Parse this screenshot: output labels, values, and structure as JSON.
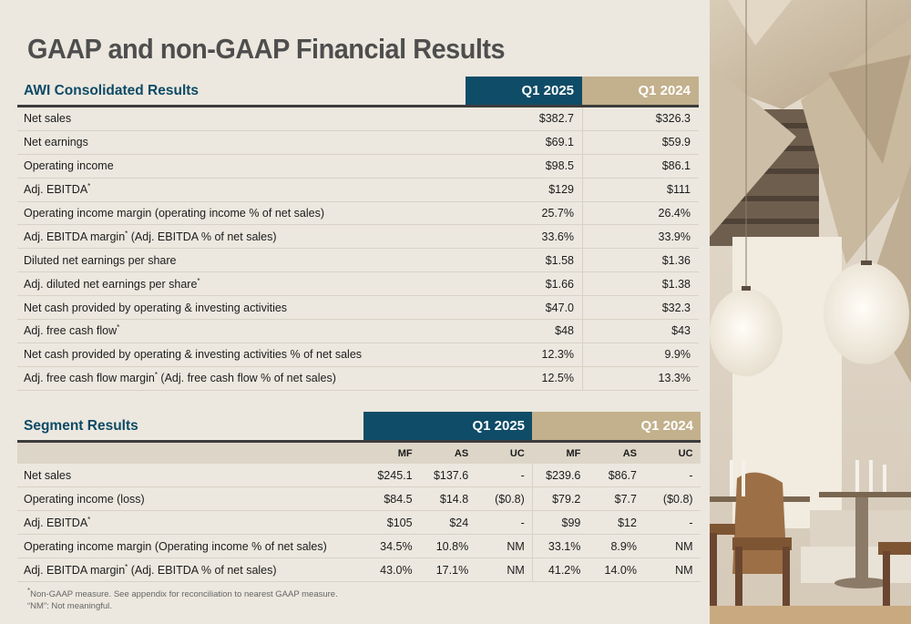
{
  "title": "GAAP and non-GAAP Financial Results",
  "consolidated": {
    "section_label": "AWI Consolidated Results",
    "col_2025": "Q1 2025",
    "col_2024": "Q1 2024",
    "rows": [
      {
        "label": "Net sales",
        "sup": "",
        "label2": "",
        "v2025": "$382.7",
        "v2024": "$326.3"
      },
      {
        "label": "Net earnings",
        "sup": "",
        "label2": "",
        "v2025": "$69.1",
        "v2024": "$59.9"
      },
      {
        "label": "Operating income",
        "sup": "",
        "label2": "",
        "v2025": "$98.5",
        "v2024": "$86.1"
      },
      {
        "label": "Adj. EBITDA",
        "sup": "*",
        "label2": "",
        "v2025": "$129",
        "v2024": "$111"
      },
      {
        "label": "Operating income margin (operating income % of net sales)",
        "sup": "",
        "label2": "",
        "v2025": "25.7%",
        "v2024": "26.4%"
      },
      {
        "label": "Adj. EBITDA margin",
        "sup": "*",
        "label2": " (Adj. EBITDA % of net sales)",
        "v2025": "33.6%",
        "v2024": "33.9%"
      },
      {
        "label": "Diluted net earnings per share",
        "sup": "",
        "label2": "",
        "v2025": "$1.58",
        "v2024": "$1.36"
      },
      {
        "label": "Adj. diluted net earnings per share",
        "sup": "*",
        "label2": "",
        "v2025": "$1.66",
        "v2024": "$1.38"
      },
      {
        "label": "Net cash provided by operating & investing activities",
        "sup": "",
        "label2": "",
        "v2025": "$47.0",
        "v2024": "$32.3"
      },
      {
        "label": "Adj. free cash flow",
        "sup": "*",
        "label2": "",
        "v2025": "$48",
        "v2024": "$43"
      },
      {
        "label": "Net cash provided by operating & investing activities % of net sales",
        "sup": "",
        "label2": "",
        "v2025": "12.3%",
        "v2024": "9.9%"
      },
      {
        "label": "Adj. free cash flow margin",
        "sup": "*",
        "label2": " (Adj. free cash flow % of net sales)",
        "v2025": "12.5%",
        "v2024": "13.3%"
      }
    ]
  },
  "segment": {
    "section_label": "Segment Results",
    "col_2025": "Q1 2025",
    "col_2024": "Q1 2024",
    "subcols": [
      "MF",
      "AS",
      "UC",
      "MF",
      "AS",
      "UC"
    ],
    "rows": [
      {
        "label": "Net sales",
        "sup": "",
        "label2": "",
        "vals": [
          "$245.1",
          "$137.6",
          "-",
          "$239.6",
          "$86.7",
          "-"
        ]
      },
      {
        "label": "Operating income (loss)",
        "sup": "",
        "label2": "",
        "vals": [
          "$84.5",
          "$14.8",
          "($0.8)",
          "$79.2",
          "$7.7",
          "($0.8)"
        ]
      },
      {
        "label": "Adj. EBITDA",
        "sup": "*",
        "label2": "",
        "vals": [
          "$105",
          "$24",
          "-",
          "$99",
          "$12",
          "-"
        ]
      },
      {
        "label": "Operating income margin (Operating income % of net sales)",
        "sup": "",
        "label2": "",
        "vals": [
          "34.5%",
          "10.8%",
          "NM",
          "33.1%",
          "8.9%",
          "NM"
        ]
      },
      {
        "label": "Adj. EBITDA margin",
        "sup": "*",
        "label2": " (Adj. EBITDA % of net sales)",
        "vals": [
          "43.0%",
          "17.1%",
          "NM",
          "41.2%",
          "14.0%",
          "NM"
        ]
      }
    ]
  },
  "notes": {
    "sup": "*",
    "line1": "Non-GAAP measure. See appendix for reconciliation to nearest GAAP measure.",
    "line2": "“NM”: Not meaningful."
  },
  "colors": {
    "background": "#ece8df",
    "accent_blue": "#0f4c67",
    "accent_tan": "#c3b08c",
    "title": "#4e4e4e"
  }
}
